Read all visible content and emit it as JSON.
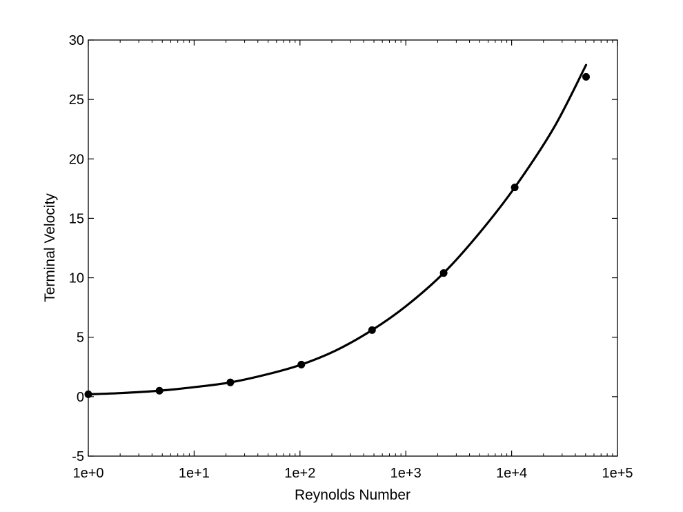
{
  "chart_data": {
    "type": "line",
    "title": "",
    "xlabel": "Reynolds Number",
    "ylabel": "Terminal Velocity",
    "x_scale": "log",
    "xlim": [
      1,
      100000
    ],
    "ylim": [
      -5,
      30
    ],
    "x_ticks": [
      1,
      10,
      100,
      1000,
      10000,
      100000
    ],
    "x_tick_labels": [
      "1e+0",
      "1e+1",
      "1e+2",
      "1e+3",
      "1e+4",
      "1e+5"
    ],
    "y_ticks": [
      -5,
      0,
      5,
      10,
      15,
      20,
      25,
      30
    ],
    "y_tick_labels": [
      "-5",
      "0",
      "5",
      "10",
      "15",
      "20",
      "25",
      "30"
    ],
    "grid": false,
    "legend": "none",
    "colors": {
      "line": "#000000",
      "markers": "#000000",
      "axes": "#000000"
    },
    "points": [
      {
        "x": 1,
        "y": 0.2
      },
      {
        "x": 4.7,
        "y": 0.5
      },
      {
        "x": 22,
        "y": 1.2
      },
      {
        "x": 103,
        "y": 2.7
      },
      {
        "x": 480,
        "y": 5.6
      },
      {
        "x": 2280,
        "y": 10.4
      },
      {
        "x": 10700,
        "y": 17.6
      },
      {
        "x": 50500,
        "y": 26.9
      }
    ],
    "fit_curve": [
      {
        "x": 1,
        "y": 0.2
      },
      {
        "x": 2,
        "y": 0.3
      },
      {
        "x": 4.7,
        "y": 0.5
      },
      {
        "x": 10,
        "y": 0.8
      },
      {
        "x": 22,
        "y": 1.2
      },
      {
        "x": 50,
        "y": 1.9
      },
      {
        "x": 103,
        "y": 2.7
      },
      {
        "x": 220,
        "y": 3.9
      },
      {
        "x": 480,
        "y": 5.6
      },
      {
        "x": 1000,
        "y": 7.6
      },
      {
        "x": 2280,
        "y": 10.4
      },
      {
        "x": 5000,
        "y": 13.8
      },
      {
        "x": 10700,
        "y": 17.6
      },
      {
        "x": 25000,
        "y": 22.6
      },
      {
        "x": 50500,
        "y": 27.9
      }
    ]
  }
}
